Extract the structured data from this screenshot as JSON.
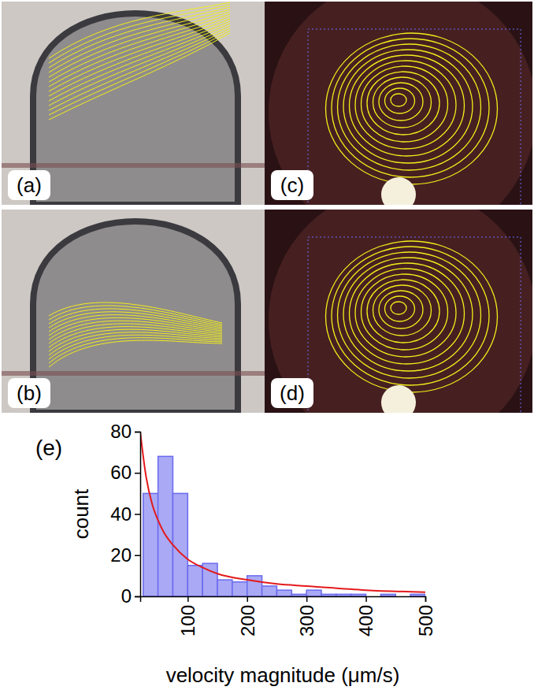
{
  "panels": [
    {
      "label": "(a)"
    },
    {
      "label": "(b)"
    },
    {
      "label": "(c)"
    },
    {
      "label": "(d)"
    }
  ],
  "chart_data": {
    "type": "histogram",
    "label": "(e)",
    "x_label": "velocity magnitude (μm/s)",
    "y_label": "count",
    "bins": [
      25,
      50,
      75,
      100,
      125,
      150,
      175,
      200,
      225,
      250,
      275,
      300,
      325,
      350,
      375,
      400,
      425,
      450,
      475,
      500
    ],
    "values": [
      50,
      68,
      50,
      15,
      16,
      8,
      7,
      10,
      5,
      3,
      1,
      3,
      1,
      1,
      1,
      0,
      1,
      0,
      1
    ],
    "color": "#a9a9f5",
    "fit": {
      "type": "line",
      "color": "#e41a1c",
      "x": [
        20,
        30,
        40,
        50,
        60,
        75,
        100,
        125,
        150,
        200,
        250,
        300,
        400,
        500
      ],
      "values": [
        80,
        58,
        45,
        37,
        31,
        25,
        18,
        14,
        11,
        8,
        6,
        5,
        3,
        2
      ]
    },
    "xlim": [
      20,
      500
    ],
    "xticks": [
      100,
      200,
      300,
      400,
      500
    ],
    "ylim": [
      0,
      80
    ],
    "yticks": [
      0,
      20,
      40,
      60,
      80
    ],
    "grid": false
  }
}
